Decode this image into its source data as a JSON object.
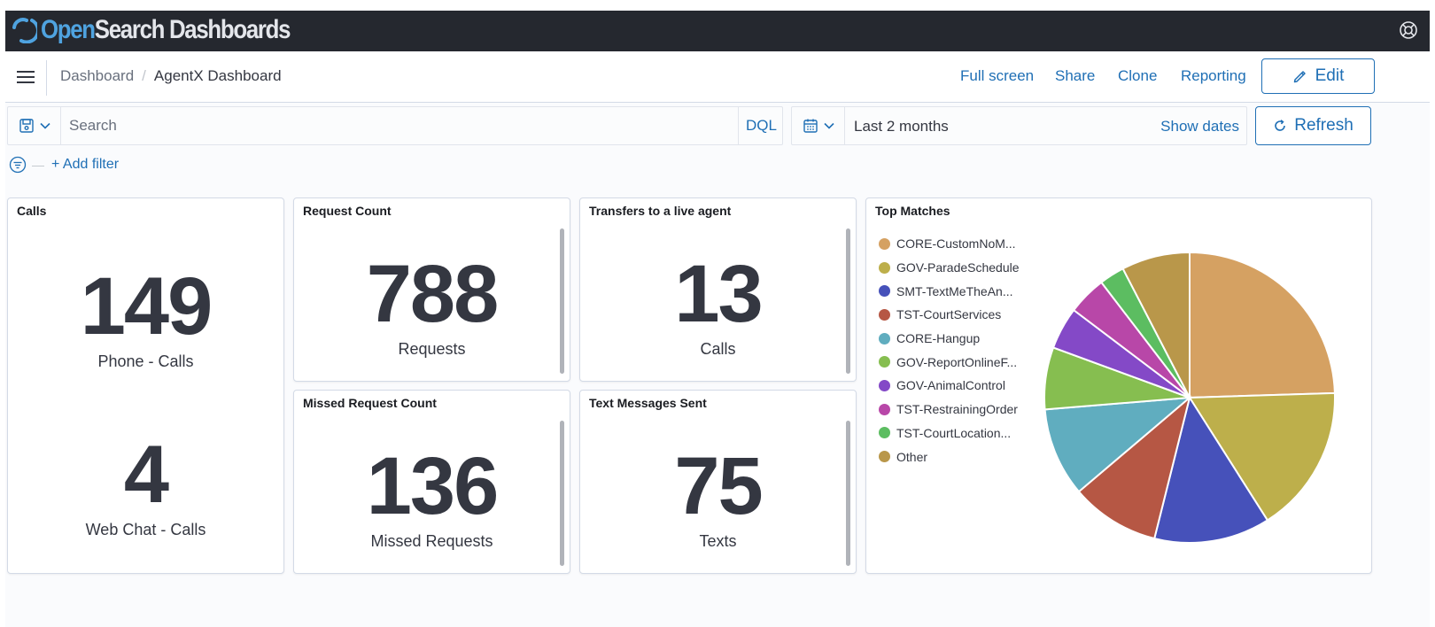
{
  "app": {
    "logo_open": "Open",
    "logo_rest": "Search Dashboards",
    "logo_icon": "opensearch-logo",
    "help_icon": "help-icon"
  },
  "breadcrumbs": {
    "parent": "Dashboard",
    "separator": "/",
    "current": "AgentX Dashboard"
  },
  "header_actions": {
    "full_screen": "Full screen",
    "share": "Share",
    "clone": "Clone",
    "reporting": "Reporting",
    "edit": "Edit"
  },
  "query_bar": {
    "search_placeholder": "Search",
    "language": "DQL",
    "date_range": "Last 2 months",
    "show_dates": "Show dates",
    "refresh": "Refresh"
  },
  "filters": {
    "add_filter": "+ Add filter"
  },
  "panels": {
    "calls": {
      "title": "Calls",
      "metrics": [
        {
          "value": "149",
          "label": "Phone - Calls"
        },
        {
          "value": "4",
          "label": "Web Chat - Calls"
        }
      ]
    },
    "request_count": {
      "title": "Request Count",
      "value": "788",
      "label": "Requests"
    },
    "transfers": {
      "title": "Transfers to a live agent",
      "value": "13",
      "label": "Calls"
    },
    "missed_request_count": {
      "title": "Missed Request Count",
      "value": "136",
      "label": "Missed Requests"
    },
    "text_messages": {
      "title": "Text Messages Sent",
      "value": "75",
      "label": "Texts"
    },
    "top_matches": {
      "title": "Top Matches"
    }
  },
  "chart_data": {
    "type": "pie",
    "title": "Top Matches",
    "legend_position": "left",
    "slices": [
      {
        "label": "CORE-CustomNoM...",
        "value": 24.5,
        "color": "#d5a162"
      },
      {
        "label": "GOV-ParadeSchedule",
        "value": 16.5,
        "color": "#bdaf4b"
      },
      {
        "label": "SMT-TextMeTheAn...",
        "value": 12.9,
        "color": "#4651ba"
      },
      {
        "label": "TST-CourtServices",
        "value": 9.9,
        "color": "#b65744"
      },
      {
        "label": "CORE-Hangup",
        "value": 9.9,
        "color": "#60adbf"
      },
      {
        "label": "GOV-ReportOnlineF...",
        "value": 6.9,
        "color": "#86be50"
      },
      {
        "label": "GOV-AnimalControl",
        "value": 4.7,
        "color": "#8449c7"
      },
      {
        "label": "TST-RestrainingOrder",
        "value": 4.3,
        "color": "#b847a8"
      },
      {
        "label": "TST-CourtLocation...",
        "value": 2.8,
        "color": "#5cbd61"
      },
      {
        "label": "Other",
        "value": 7.6,
        "color": "#b9974a"
      }
    ]
  }
}
